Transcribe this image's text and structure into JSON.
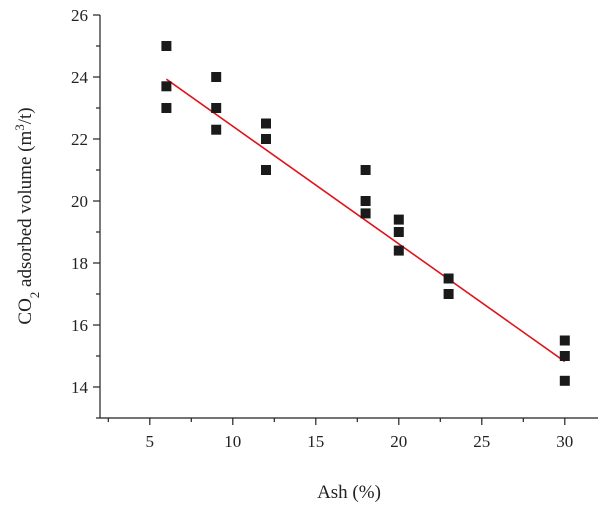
{
  "chart_data": {
    "type": "scatter",
    "title": "",
    "xlabel": "Ash (%)",
    "ylabel_parts": {
      "pre": "CO",
      "sub": "2",
      "mid": " adsorbed volume (m",
      "sup": "3",
      "post": "/t)"
    },
    "xlim": [
      2,
      32
    ],
    "ylim": [
      13,
      26
    ],
    "x_ticks": [
      5,
      10,
      15,
      20,
      25,
      30
    ],
    "y_ticks": [
      14,
      16,
      18,
      20,
      22,
      24,
      26
    ],
    "grid": false,
    "series": [
      {
        "x": [
          6,
          6,
          6,
          9,
          9,
          9,
          12,
          12,
          12,
          18,
          18,
          18,
          20,
          20,
          20,
          23,
          23,
          30,
          30,
          30
        ],
        "y": [
          25.0,
          23.7,
          23.0,
          24.0,
          23.0,
          22.3,
          22.5,
          22.0,
          21.0,
          21.0,
          20.0,
          19.6,
          19.4,
          19.0,
          18.4,
          17.5,
          17.0,
          15.5,
          15.0,
          14.2
        ],
        "color": "#1a1a1a",
        "marker": "square"
      }
    ],
    "fit_line": {
      "x": [
        6,
        30
      ],
      "y": [
        23.93,
        14.82
      ],
      "color": "#e0141c"
    }
  }
}
